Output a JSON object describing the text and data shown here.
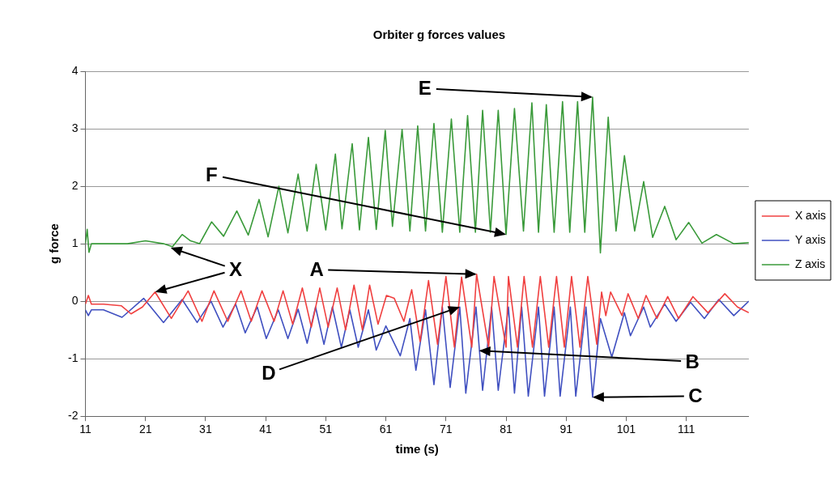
{
  "chart_data": {
    "type": "line",
    "title": "Orbiter g forces values",
    "xlabel": "time (s)",
    "ylabel": "g force",
    "xlim": [
      11,
      121.4
    ],
    "xticks": [
      11,
      21,
      31,
      41,
      51,
      61,
      71,
      81,
      91,
      101,
      111
    ],
    "ylim": [
      -2,
      4
    ],
    "yticks": [
      -2,
      -1,
      0,
      1,
      2,
      3,
      4
    ],
    "grid": "y",
    "legend": "right",
    "marker": "none",
    "line_style": "solid",
    "series": [
      {
        "name": "X axis",
        "color": "#f04040",
        "x": [
          11,
          11.5,
          12,
          14,
          17,
          18.6,
          20.5,
          22.6,
          25.3,
          28.1,
          30.4,
          32.4,
          34.7,
          36.9,
          38.6,
          40.4,
          42.4,
          43.9,
          45.5,
          47.1,
          48.6,
          50,
          51.4,
          52.9,
          54.3,
          55.7,
          57.1,
          58.3,
          59.7,
          61.1,
          62.4,
          64,
          65.3,
          66.7,
          68.1,
          69.6,
          71,
          72.4,
          73.6,
          75.3,
          76.1,
          78.1,
          79,
          81,
          81.4,
          82.9,
          84,
          85.4,
          86.7,
          88.1,
          89.4,
          90.7,
          91.9,
          93.3,
          94.6,
          96.1,
          96.9,
          97.6,
          98.4,
          100.3,
          101.3,
          103,
          104.3,
          106.1,
          107.9,
          109.7,
          112.1,
          114.6,
          117.4,
          119.5,
          121.4
        ],
        "values": [
          -0.05,
          0.1,
          -0.05,
          -0.05,
          -0.08,
          -0.22,
          -0.1,
          0.16,
          -0.3,
          0.18,
          -0.35,
          0.18,
          -0.35,
          0.18,
          -0.35,
          0.18,
          -0.35,
          0.18,
          -0.4,
          0.23,
          -0.45,
          0.23,
          -0.45,
          0.23,
          -0.5,
          0.28,
          -0.5,
          0.28,
          -0.4,
          0.1,
          0.05,
          -0.35,
          0.2,
          -0.7,
          0.36,
          -0.75,
          0.43,
          -0.8,
          0.42,
          -0.8,
          0.47,
          -0.8,
          0.43,
          -0.8,
          0.43,
          -0.8,
          0.43,
          -0.8,
          0.43,
          -0.8,
          0.43,
          -0.8,
          0.43,
          -0.8,
          0.43,
          -0.75,
          0.16,
          -0.25,
          0.16,
          -0.25,
          0.13,
          -0.3,
          0.1,
          -0.3,
          0.08,
          -0.3,
          0.08,
          -0.2,
          0.13,
          -0.1,
          -0.2
        ]
      },
      {
        "name": "Y axis",
        "color": "#4050c0",
        "x": [
          11,
          11.5,
          12,
          14,
          17.1,
          20.7,
          24,
          27.1,
          29.6,
          31.9,
          33.9,
          36,
          37.6,
          39.6,
          41.1,
          43.1,
          44.7,
          46.4,
          47.9,
          49.3,
          50.7,
          52.1,
          53.6,
          55,
          56.4,
          58.1,
          59.4,
          61,
          63.4,
          65,
          66,
          67.6,
          69,
          70.4,
          71.7,
          73.3,
          74.3,
          76,
          77.1,
          78.6,
          79.7,
          81.4,
          82.4,
          83.6,
          84.7,
          86.4,
          87.4,
          89,
          90,
          91.7,
          92.6,
          94.3,
          95.4,
          96.7,
          98.6,
          100.7,
          101.7,
          103.9,
          105,
          107.4,
          109.3,
          111.7,
          114,
          116.4,
          118.9,
          121.4
        ],
        "values": [
          -0.15,
          -0.25,
          -0.15,
          -0.15,
          -0.28,
          0.05,
          -0.37,
          0.03,
          -0.37,
          0,
          -0.45,
          -0.05,
          -0.55,
          -0.1,
          -0.65,
          -0.15,
          -0.65,
          -0.14,
          -0.73,
          -0.1,
          -0.75,
          -0.1,
          -0.8,
          -0.15,
          -0.8,
          -0.15,
          -0.85,
          -0.43,
          -0.95,
          -0.3,
          -1.2,
          -0.15,
          -1.45,
          -0.1,
          -1.5,
          -0.1,
          -1.6,
          -0.1,
          -1.55,
          -0.1,
          -1.55,
          -0.1,
          -1.6,
          -0.1,
          -1.65,
          -0.1,
          -1.65,
          -0.1,
          -1.65,
          -0.1,
          -1.65,
          -0.1,
          -1.67,
          -0.3,
          -0.97,
          -0.2,
          -0.6,
          -0.1,
          -0.45,
          -0.05,
          -0.35,
          -0.02,
          -0.3,
          0.03,
          -0.25,
          0
        ]
      },
      {
        "name": "Z axis",
        "color": "#3a9a3a",
        "x": [
          11,
          11.3,
          11.6,
          12,
          15,
          18,
          21,
          24,
          25.5,
          27.1,
          28.5,
          30,
          32,
          34,
          36.2,
          38.1,
          39.9,
          41.4,
          43.2,
          44.7,
          46.4,
          47.9,
          49.4,
          51,
          52.6,
          53.7,
          55.4,
          56.6,
          58.1,
          59.4,
          60.9,
          62.1,
          63.7,
          65,
          66.3,
          67.6,
          69,
          70.4,
          71.9,
          73.3,
          74.6,
          75.9,
          77.1,
          78.4,
          79.7,
          81,
          82.4,
          83.9,
          85.3,
          86.4,
          87.7,
          89,
          90.4,
          91.6,
          92.9,
          94.1,
          95.4,
          96.7,
          98,
          99.3,
          100.7,
          102.4,
          103.9,
          105.4,
          107.4,
          109.3,
          111.4,
          113.6,
          116,
          118.9,
          121.4
        ],
        "values": [
          1,
          1.25,
          0.85,
          1,
          1,
          1,
          1.05,
          1,
          0.95,
          1.16,
          1.05,
          1,
          1.38,
          1.13,
          1.57,
          1.15,
          1.77,
          1.12,
          2,
          1.19,
          2.21,
          1.22,
          2.38,
          1.24,
          2.56,
          1.26,
          2.74,
          1.24,
          2.85,
          1.25,
          2.97,
          1.3,
          2.99,
          1.22,
          3.05,
          1.22,
          3.09,
          1.2,
          3.17,
          1.2,
          3.23,
          1.2,
          3.32,
          1.2,
          3.32,
          1.16,
          3.35,
          1.22,
          3.45,
          1.2,
          3.42,
          1.2,
          3.47,
          1.2,
          3.47,
          1.2,
          3.55,
          0.84,
          3.2,
          1.22,
          2.53,
          1.22,
          2.08,
          1.11,
          1.65,
          1.07,
          1.37,
          1.01,
          1.16,
          1,
          1.02
        ]
      }
    ],
    "annotations": [
      {
        "text": "A",
        "x": 76.1,
        "y": 0.47
      },
      {
        "text": "B",
        "x": 76.5,
        "y": -0.86
      },
      {
        "text": "C",
        "x": 95.4,
        "y": -1.67
      },
      {
        "text": "D",
        "x": 73.3,
        "y": -0.1
      },
      {
        "text": "E",
        "x": 95.4,
        "y": 3.55
      },
      {
        "text": "F",
        "x": 81,
        "y": 1.16
      },
      {
        "text": "X",
        "x": 22.6,
        "y": 0.16
      }
    ]
  }
}
